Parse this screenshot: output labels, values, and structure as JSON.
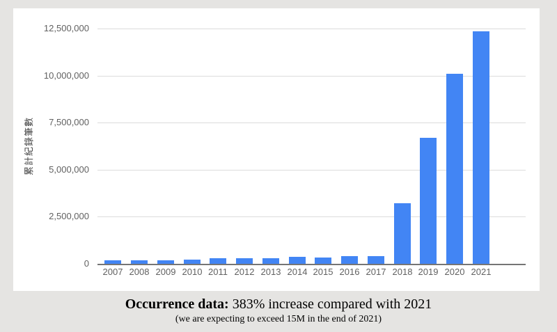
{
  "chart_data": {
    "type": "bar",
    "title": "",
    "categories": [
      "2007",
      "2008",
      "2009",
      "2010",
      "2011",
      "2012",
      "2013",
      "2014",
      "2015",
      "2016",
      "2017",
      "2018",
      "2019",
      "2020",
      "2021"
    ],
    "values": [
      170000,
      195000,
      190000,
      230000,
      300000,
      295000,
      290000,
      370000,
      345000,
      395000,
      400000,
      3200000,
      6700000,
      10100000,
      12350000
    ],
    "ylabel": "累計紀錄筆數",
    "xlabel": "",
    "ylim": [
      0,
      12500000
    ],
    "yticks": [
      {
        "value": 0,
        "label": "0"
      },
      {
        "value": 2500000,
        "label": "2,500,000"
      },
      {
        "value": 5000000,
        "label": "5,000,000"
      },
      {
        "value": 7500000,
        "label": "7,500,000"
      },
      {
        "value": 10000000,
        "label": "10,000,000"
      },
      {
        "value": 12500000,
        "label": "12,500,000"
      }
    ],
    "bar_color": "#4285f4",
    "grid": true,
    "legend": "none"
  },
  "caption": {
    "heading": "Occurrence data:",
    "text": "383% increase compared with 2021",
    "subtext": "(we are expecting to exceed 15M in the end of 2021)"
  }
}
